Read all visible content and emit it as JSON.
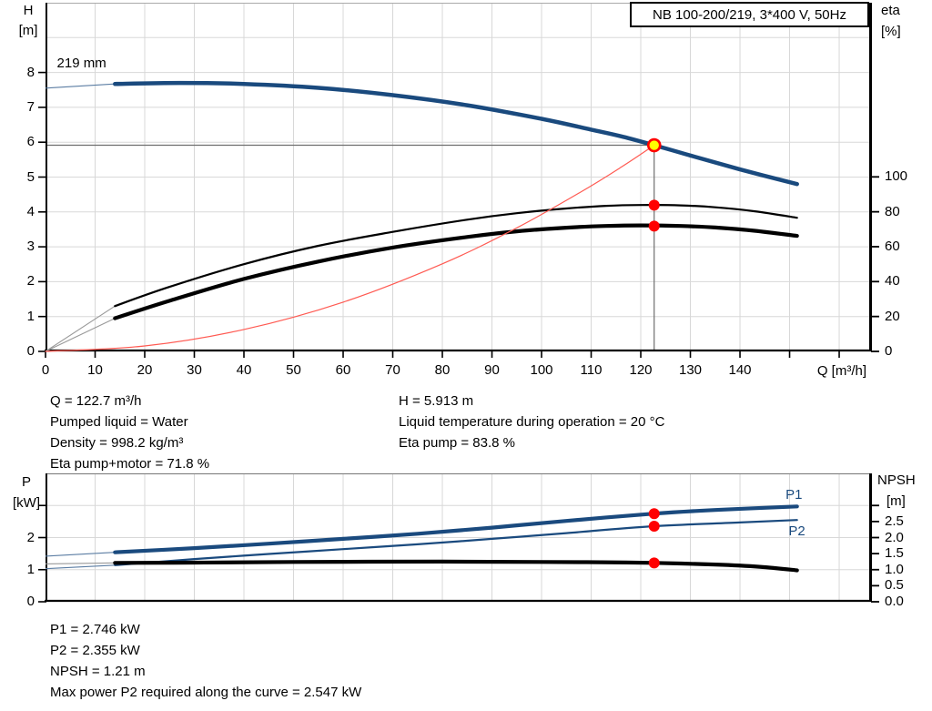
{
  "title_box": {
    "label": "NB 100-200/219, 3*400 V, 50Hz"
  },
  "colors": {
    "curve_blue": "#1a4a7e",
    "marker_red": "#ff0000",
    "system_red": "#ff5a52",
    "curve_black": "#000000",
    "duty_yellow": "#ffff00",
    "grid": "#d8d8d8",
    "crosshair": "#6e6e6e",
    "axis": "#000000"
  },
  "info_top_left": [
    "Q = 122.7 m³/h",
    "Pumped liquid = Water",
    "Density = 998.2 kg/m³",
    "Eta pump+motor = 71.8 %"
  ],
  "info_top_right": [
    "H = 5.913 m",
    "Liquid temperature during operation = 20 °C",
    "Eta pump = 83.8 %"
  ],
  "info_bottom": [
    "P1 = 2.746 kW",
    "P2 = 2.355 kW",
    "NPSH = 1.21 m",
    "Max power P2 required along the curve = 2.547 kW"
  ],
  "chart_data": [
    {
      "type": "line",
      "title": "Pump curve QH with efficiency",
      "x": {
        "label": "Q [m³/h]",
        "min": 0,
        "max": 166.6,
        "tick_step": 10,
        "label_max": 140,
        "labels_shown": true,
        "grid": true
      },
      "y": {
        "title": [
          "H",
          "[m]"
        ],
        "min": 0,
        "max": 10,
        "ticks": [
          0,
          1,
          2,
          3,
          4,
          5,
          6,
          7,
          8
        ],
        "grid_max": 9
      },
      "y2": {
        "title": [
          "eta",
          "[%]"
        ],
        "min": 0,
        "max": 199.8,
        "ticks": [
          0,
          20,
          40,
          60,
          80,
          100
        ]
      },
      "series": [
        {
          "name": "pump-curve-219mm",
          "axis": "y",
          "color": "#1a4a7e",
          "width": 4.5,
          "lead": [
            [
              0,
              7.55
            ],
            [
              14,
              7.67
            ]
          ],
          "lead_color": "#5b7da3",
          "points": [
            [
              14,
              7.67
            ],
            [
              27,
              7.7
            ],
            [
              40,
              7.67
            ],
            [
              55,
              7.56
            ],
            [
              70,
              7.35
            ],
            [
              85,
              7.06
            ],
            [
              100,
              6.67
            ],
            [
              110,
              6.36
            ],
            [
              116,
              6.17
            ],
            [
              122.7,
              5.913
            ],
            [
              130,
              5.62
            ],
            [
              140,
              5.22
            ],
            [
              151.5,
              4.8
            ]
          ]
        },
        {
          "name": "eta-pump",
          "axis": "y2",
          "color": "#000000",
          "width": 2.2,
          "lead": [
            [
              0,
              0
            ],
            [
              14,
              26
            ]
          ],
          "lead_color": "#999999",
          "points": [
            [
              14,
              26
            ],
            [
              25,
              37
            ],
            [
              40,
              50
            ],
            [
              55,
              60.5
            ],
            [
              70,
              68.5
            ],
            [
              85,
              75.5
            ],
            [
              95,
              79.2
            ],
            [
              105,
              81.9
            ],
            [
              113,
              83.4
            ],
            [
              120,
              83.9
            ],
            [
              128,
              83.7
            ],
            [
              135,
              82.6
            ],
            [
              143,
              80.3
            ],
            [
              151.5,
              76.6
            ]
          ]
        },
        {
          "name": "eta-pump-motor",
          "axis": "y2",
          "color": "#000000",
          "width": 4.2,
          "lead": [
            [
              0,
              0
            ],
            [
              14,
              19
            ]
          ],
          "lead_color": "#999999",
          "points": [
            [
              14,
              19
            ],
            [
              25,
              29
            ],
            [
              40,
              41.5
            ],
            [
              55,
              51.5
            ],
            [
              70,
              59.5
            ],
            [
              85,
              65.6
            ],
            [
              95,
              68.8
            ],
            [
              105,
              70.9
            ],
            [
              113,
              71.9
            ],
            [
              120,
              72.2
            ],
            [
              128,
              71.9
            ],
            [
              135,
              71.0
            ],
            [
              143,
              69.1
            ],
            [
              151.5,
              66.2
            ]
          ]
        },
        {
          "name": "system-curve",
          "axis": "y",
          "color": "#ff5a52",
          "width": 1.2,
          "points": [
            [
              0,
              0
            ],
            [
              20,
              0.157
            ],
            [
              40,
              0.628
            ],
            [
              60,
              1.413
            ],
            [
              80,
              2.512
            ],
            [
              95,
              3.543
            ],
            [
              108,
              4.58
            ],
            [
              116,
              5.28
            ],
            [
              122.7,
              5.913
            ]
          ]
        }
      ],
      "duty_point": {
        "q": 122.7,
        "v": 5.913,
        "axis": "y",
        "crosshair": true
      },
      "markers": [
        {
          "q": 122.7,
          "v": 83.8,
          "axis": "y2"
        },
        {
          "q": 122.7,
          "v": 71.8,
          "axis": "y2"
        }
      ],
      "annotations": [
        {
          "text": "219 mm",
          "q": 2.3,
          "v": 8.45,
          "axis": "y",
          "color": "#000000"
        }
      ]
    },
    {
      "type": "line",
      "title": "Power and NPSH curves",
      "x": {
        "label": "",
        "min": 0,
        "max": 166.6,
        "tick_step": 10,
        "labels_shown": false,
        "grid": true
      },
      "y": {
        "title": [
          "P",
          "[kW]"
        ],
        "min": 0,
        "max": 4,
        "ticks": [
          0,
          1,
          2
        ],
        "extra_ticks": [
          3
        ],
        "grid_max": 3
      },
      "y2": {
        "title": [
          "NPSH",
          "[m]"
        ],
        "min": 0,
        "max": 4,
        "ticks": [
          0,
          0.5,
          1,
          1.5,
          2,
          2.5
        ],
        "tick_labels": [
          "0.0",
          "0.5",
          "1.0",
          "1.5",
          "2.0",
          "2.5"
        ],
        "extra_ticks": [
          3
        ]
      },
      "series": [
        {
          "name": "p1-curve",
          "axis": "y",
          "color": "#1a4a7e",
          "width": 4.2,
          "lead": [
            [
              0,
              1.42
            ],
            [
              14,
              1.54
            ]
          ],
          "lead_color": "#5b7da3",
          "points": [
            [
              14,
              1.54
            ],
            [
              30,
              1.67
            ],
            [
              45,
              1.81
            ],
            [
              60,
              1.96
            ],
            [
              75,
              2.12
            ],
            [
              90,
              2.31
            ],
            [
              105,
              2.52
            ],
            [
              122.7,
              2.746
            ],
            [
              135,
              2.86
            ],
            [
              151.5,
              2.97
            ]
          ]
        },
        {
          "name": "p2-curve",
          "axis": "y",
          "color": "#1a4a7e",
          "width": 2.2,
          "lead": [
            [
              0,
              1.03
            ],
            [
              14,
              1.14
            ]
          ],
          "lead_color": "#5b7da3",
          "points": [
            [
              14,
              1.14
            ],
            [
              30,
              1.33
            ],
            [
              45,
              1.49
            ],
            [
              60,
              1.64
            ],
            [
              75,
              1.79
            ],
            [
              90,
              1.96
            ],
            [
              105,
              2.14
            ],
            [
              122.7,
              2.355
            ],
            [
              140,
              2.47
            ],
            [
              151.5,
              2.547
            ]
          ]
        },
        {
          "name": "npsh-curve",
          "axis": "y2",
          "color": "#000000",
          "width": 4.2,
          "lead": [
            [
              0,
              1.18
            ],
            [
              14,
              1.21
            ]
          ],
          "lead_color": "#999999",
          "points": [
            [
              14,
              1.21
            ],
            [
              30,
              1.22
            ],
            [
              50,
              1.24
            ],
            [
              80,
              1.25
            ],
            [
              100,
              1.24
            ],
            [
              112,
              1.23
            ],
            [
              122.7,
              1.21
            ],
            [
              135,
              1.16
            ],
            [
              144,
              1.09
            ],
            [
              151.5,
              0.98
            ]
          ]
        }
      ],
      "markers": [
        {
          "q": 122.7,
          "v": 2.746,
          "axis": "y"
        },
        {
          "q": 122.7,
          "v": 2.355,
          "axis": "y"
        },
        {
          "q": 122.7,
          "v": 1.21,
          "axis": "y2"
        }
      ],
      "annotations": [
        {
          "text": "P1",
          "q": 149.2,
          "v": 3.56,
          "axis": "y",
          "color": "#1a4a7e"
        },
        {
          "text": "P2",
          "q": 149.8,
          "v": 2.42,
          "axis": "y",
          "color": "#1a4a7e"
        }
      ]
    }
  ]
}
